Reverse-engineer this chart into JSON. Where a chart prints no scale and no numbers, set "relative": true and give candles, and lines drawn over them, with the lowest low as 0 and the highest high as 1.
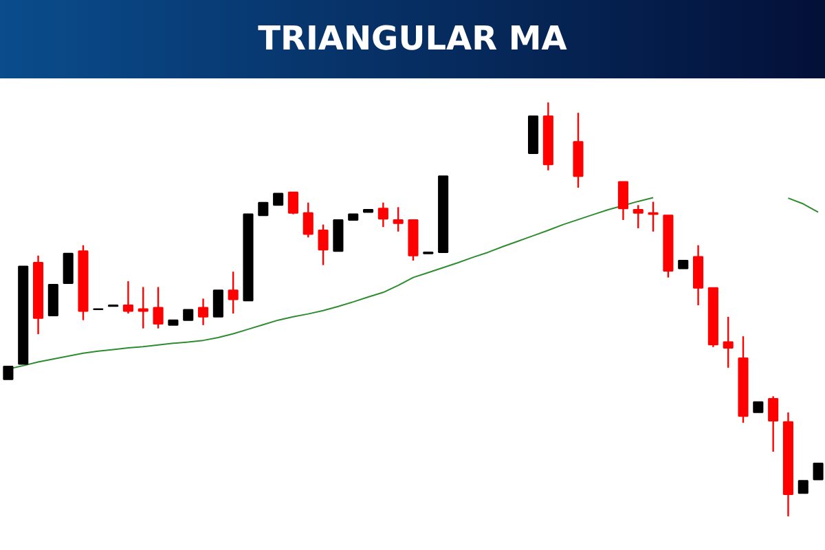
{
  "chart_data": {
    "type": "candlestick",
    "title": "TRIANGULAR MA",
    "relative": true,
    "tick_labels": false,
    "grid": false,
    "categories": [
      null,
      null,
      null,
      null,
      null,
      null,
      null,
      null,
      null,
      null,
      null,
      null,
      null,
      null,
      null,
      null,
      null,
      null,
      null,
      null,
      null,
      null,
      null,
      null,
      null,
      null,
      null,
      null,
      null,
      null,
      null,
      null,
      null,
      null,
      null,
      null,
      null,
      null,
      null,
      null,
      null,
      null,
      null,
      null,
      null,
      null,
      null,
      null,
      null,
      null,
      null,
      null,
      null,
      null,
      null
    ],
    "ohlc": [
      [
        0.331,
        0.362,
        0.331,
        0.362
      ],
      [
        0.368,
        0.604,
        0.368,
        0.604
      ],
      [
        0.613,
        0.63,
        0.44,
        0.479
      ],
      [
        0.485,
        0.56,
        0.485,
        0.56
      ],
      [
        0.563,
        0.635,
        0.563,
        0.635
      ],
      [
        0.641,
        0.655,
        0.474,
        0.496
      ],
      [
        0.5,
        0.501,
        0.5,
        0.501
      ],
      [
        0.508,
        0.51,
        0.508,
        0.51
      ],
      [
        0.51,
        0.568,
        0.49,
        0.496
      ],
      [
        0.501,
        0.554,
        0.454,
        0.496
      ],
      [
        0.504,
        0.554,
        0.454,
        0.465
      ],
      [
        0.462,
        0.474,
        0.462,
        0.474
      ],
      [
        0.474,
        0.499,
        0.474,
        0.499
      ],
      [
        0.504,
        0.526,
        0.462,
        0.482
      ],
      [
        0.482,
        0.546,
        0.482,
        0.546
      ],
      [
        0.546,
        0.591,
        0.49,
        0.524
      ],
      [
        0.521,
        0.73,
        0.521,
        0.73
      ],
      [
        0.727,
        0.758,
        0.727,
        0.758
      ],
      [
        0.752,
        0.78,
        0.752,
        0.78
      ],
      [
        0.783,
        0.783,
        0.73,
        0.733
      ],
      [
        0.733,
        0.758,
        0.674,
        0.682
      ],
      [
        0.691,
        0.705,
        0.607,
        0.644
      ],
      [
        0.641,
        0.716,
        0.641,
        0.716
      ],
      [
        0.716,
        0.73,
        0.716,
        0.73
      ],
      [
        0.735,
        0.741,
        0.735,
        0.741
      ],
      [
        0.744,
        0.758,
        0.699,
        0.719
      ],
      [
        0.716,
        0.747,
        0.688,
        0.708
      ],
      [
        0.716,
        0.716,
        0.618,
        0.63
      ],
      [
        0.635,
        0.638,
        0.635,
        0.638
      ],
      [
        0.638,
        0.822,
        0.638,
        0.822
      ],
      null,
      null,
      null,
      null,
      null,
      [
        0.877,
        0.967,
        0.877,
        0.967
      ],
      [
        0.967,
        1.0,
        0.836,
        0.85
      ],
      null,
      [
        0.905,
        0.975,
        0.794,
        0.822
      ],
      null,
      null,
      [
        0.808,
        0.808,
        0.716,
        0.744
      ],
      [
        0.741,
        0.752,
        0.696,
        0.733
      ],
      [
        0.733,
        0.76,
        0.688,
        0.73
      ],
      [
        0.727,
        0.727,
        0.577,
        0.593
      ],
      [
        0.599,
        0.618,
        0.599,
        0.618
      ],
      [
        0.627,
        0.655,
        0.51,
        0.552
      ],
      [
        0.552,
        0.552,
        0.409,
        0.415
      ],
      [
        0.421,
        0.482,
        0.359,
        0.407
      ],
      [
        0.382,
        0.435,
        0.226,
        0.242
      ],
      [
        0.251,
        0.276,
        0.251,
        0.276
      ],
      [
        0.284,
        0.29,
        0.156,
        0.231
      ],
      [
        0.228,
        0.251,
        0.0,
        0.053
      ],
      [
        0.056,
        0.086,
        0.056,
        0.086
      ],
      [
        0.089,
        0.128,
        0.089,
        0.128
      ]
    ],
    "colors": [
      "#000000",
      "#000000",
      "#ff0000",
      "#000000",
      "#000000",
      "#ff0000",
      "#000000",
      "#000000",
      "#ff0000",
      "#ff0000",
      "#ff0000",
      "#000000",
      "#000000",
      "#ff0000",
      "#000000",
      "#ff0000",
      "#000000",
      "#000000",
      "#000000",
      "#ff0000",
      "#ff0000",
      "#ff0000",
      "#000000",
      "#000000",
      "#000000",
      "#ff0000",
      "#ff0000",
      "#ff0000",
      "#000000",
      "#000000",
      null,
      null,
      null,
      null,
      null,
      "#000000",
      "#ff0000",
      null,
      "#ff0000",
      null,
      null,
      "#ff0000",
      "#ff0000",
      "#ff0000",
      "#ff0000",
      "#000000",
      "#ff0000",
      "#ff0000",
      "#ff0000",
      "#ff0000",
      "#000000",
      "#ff0000",
      "#ff0000",
      "#000000",
      "#000000"
    ],
    "series": [
      {
        "type": "line",
        "color": "#2e8b2e",
        "values": [
          0.356,
          0.364,
          0.373,
          0.38,
          0.387,
          0.394,
          0.399,
          0.403,
          0.407,
          0.41,
          0.414,
          0.418,
          0.421,
          0.425,
          0.432,
          0.441,
          0.452,
          0.463,
          0.474,
          0.482,
          0.489,
          0.497,
          0.507,
          0.518,
          0.53,
          0.541,
          0.558,
          0.577,
          0.589,
          0.601,
          0.613,
          0.626,
          0.638,
          0.652,
          0.665,
          0.678,
          0.691,
          0.705,
          0.717,
          0.729,
          0.741,
          0.751,
          0.761,
          0.77,
          null,
          null,
          null,
          null,
          null,
          null,
          null,
          null,
          0.769,
          0.755,
          0.735
        ]
      }
    ]
  }
}
